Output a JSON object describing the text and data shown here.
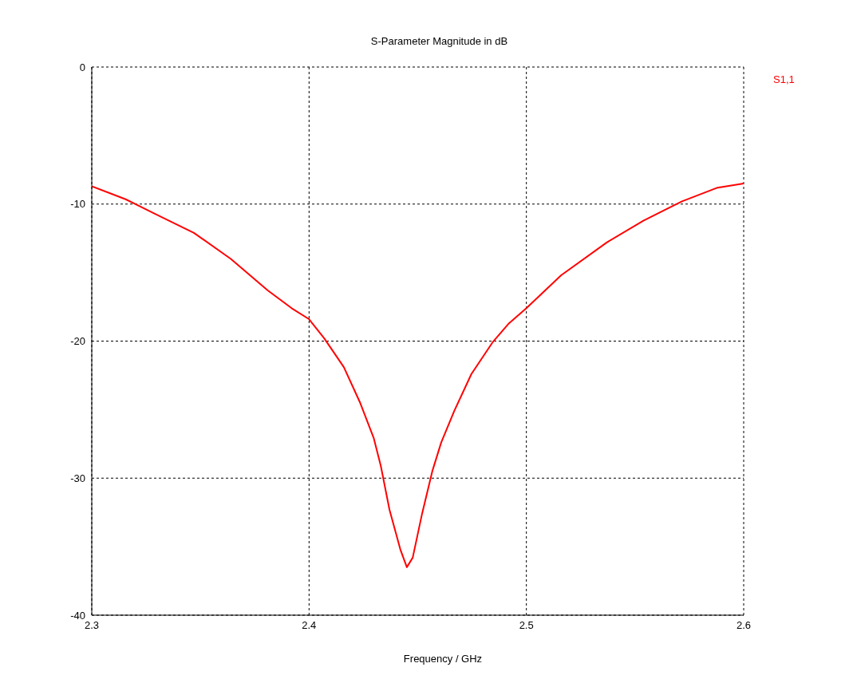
{
  "chart_data": {
    "type": "line",
    "title": "S-Parameter Magnitude in dB",
    "xlabel": "Frequency / GHz",
    "x": [
      2.3,
      2.3156,
      2.329,
      2.347,
      2.364,
      2.381,
      2.392,
      2.4,
      2.407,
      2.416,
      2.4235,
      2.4298,
      2.433,
      2.437,
      2.442,
      2.445,
      2.4477,
      2.452,
      2.4567,
      2.4608,
      2.4668,
      2.4747,
      2.4844,
      2.492,
      2.5,
      2.516,
      2.537,
      2.554,
      2.5716,
      2.588,
      2.6
    ],
    "series": [
      {
        "name": "S1,1",
        "color": "#ff0000",
        "values": [
          -8.7,
          -9.65,
          -10.7,
          -12.1,
          -14.0,
          -16.3,
          -17.6,
          -18.4,
          -19.8,
          -21.9,
          -24.5,
          -27.1,
          -29.1,
          -32.3,
          -35.2,
          -36.5,
          -35.8,
          -32.6,
          -29.5,
          -27.4,
          -25.1,
          -22.4,
          -20.1,
          -18.7,
          -17.6,
          -15.2,
          -12.8,
          -11.2,
          -9.8,
          -8.8,
          -8.5
        ]
      }
    ],
    "xlim": [
      2.3,
      2.6
    ],
    "xticks": [
      2.3,
      2.4,
      2.5,
      2.6
    ],
    "ylim": [
      -40,
      0
    ],
    "yticks": [
      -40,
      -30,
      -20,
      -10,
      0
    ],
    "grid": true,
    "legend": "top right",
    "marker": "none",
    "line_style": "solid"
  }
}
